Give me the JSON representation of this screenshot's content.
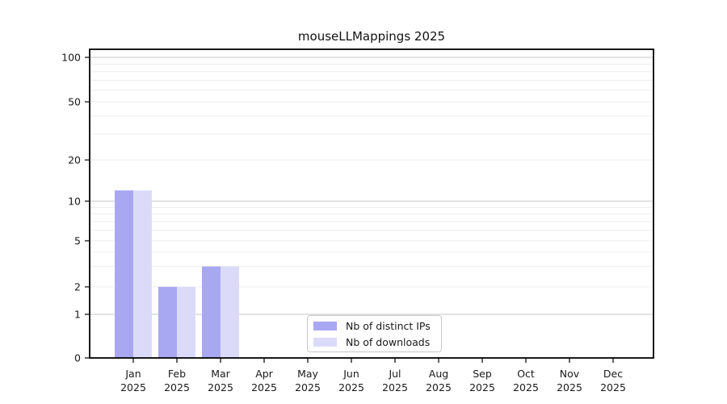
{
  "figure": {
    "title": "mouseLLMappings 2025"
  },
  "chart_data": {
    "type": "bar",
    "title": "mouseLLMappings 2025",
    "categories": [
      "Jan",
      "Feb",
      "Mar",
      "Apr",
      "May",
      "Jun",
      "Jul",
      "Aug",
      "Sep",
      "Oct",
      "Nov",
      "Dec"
    ],
    "x_tick_second_line": "2025",
    "series": [
      {
        "name": "Nb of distinct IPs",
        "color": "#a8a8f2",
        "values": [
          12,
          2,
          3,
          0,
          0,
          0,
          0,
          0,
          0,
          0,
          0,
          0
        ]
      },
      {
        "name": "Nb of downloads",
        "color": "#dbdbf9",
        "values": [
          12,
          2,
          3,
          0,
          0,
          0,
          0,
          0,
          0,
          0,
          0,
          0
        ]
      }
    ],
    "y_ticks": [
      0,
      1,
      2,
      5,
      10,
      20,
      50,
      100
    ],
    "y_axis_scale": "log above 1, linear between 0 and 1",
    "ylim": [
      0,
      115
    ],
    "xlabel": "",
    "ylabel": "",
    "grid": "horizontal major and minor gridlines",
    "legend_position": "lower center",
    "colors": {
      "major_grid": "#c6c6c6",
      "minor_grid": "#ececec",
      "axis": "#000000",
      "tick_label": "#1a1a1a"
    }
  }
}
